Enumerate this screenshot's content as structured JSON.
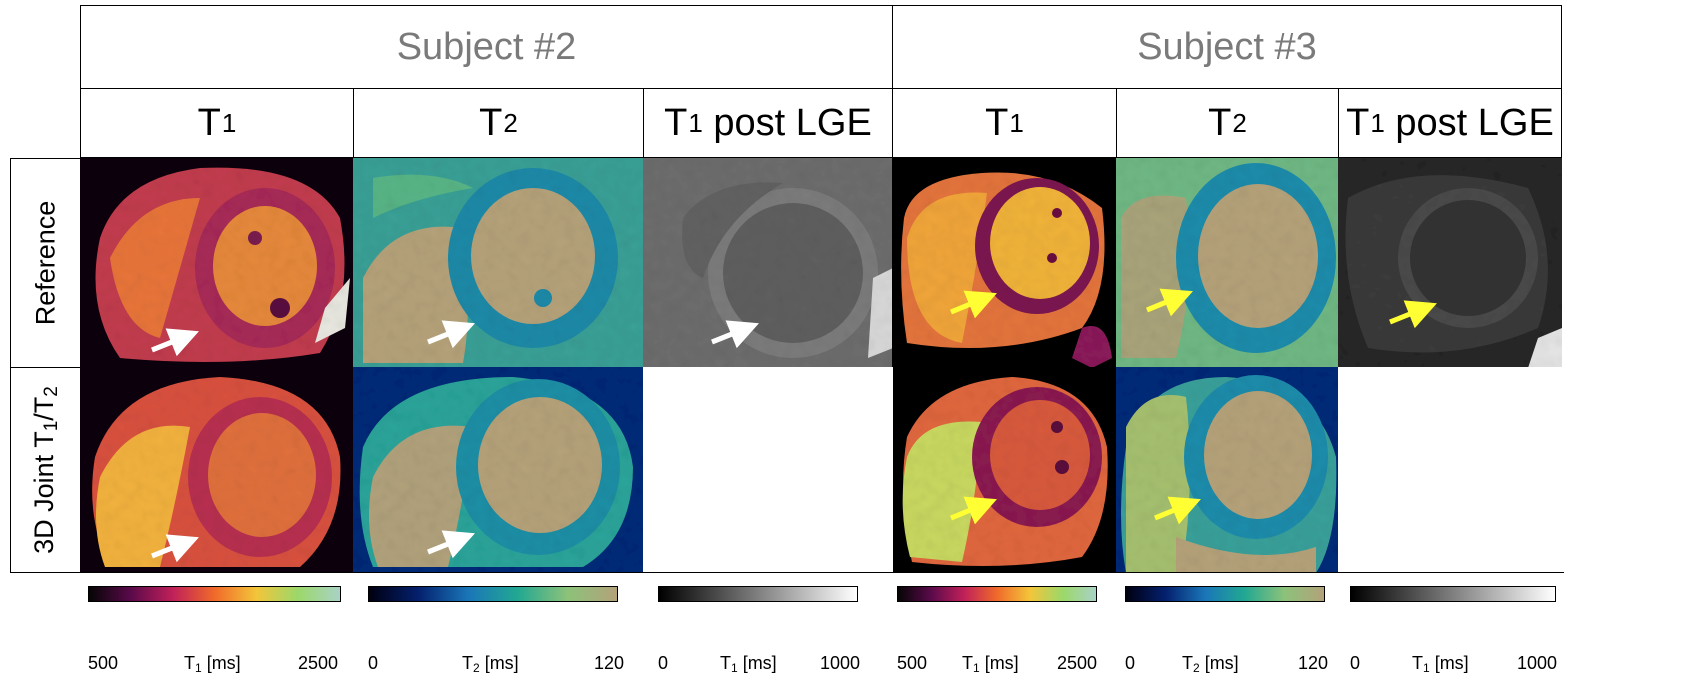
{
  "subjects": [
    "Subject #2",
    "Subject #3"
  ],
  "columns": {
    "t1": {
      "sym": "T",
      "sub": "1",
      "rest": ""
    },
    "t2": {
      "sym": "T",
      "sub": "2",
      "rest": ""
    },
    "t1lge": {
      "sym": "T",
      "sub": "1",
      "rest": " post LGE"
    }
  },
  "rows": {
    "reference": "Reference",
    "joint_prefix": "3D Joint T",
    "joint_sub1": "1",
    "joint_mid": "/T",
    "joint_sub2": "2"
  },
  "colorbars": [
    {
      "min": "500",
      "label_sym": "T",
      "label_sub": "1",
      "label_unit": " [ms]",
      "max": "2500",
      "map": "t1"
    },
    {
      "min": "0",
      "label_sym": "T",
      "label_sub": "2",
      "label_unit": " [ms]",
      "max": "120",
      "map": "t2"
    },
    {
      "min": "0",
      "label_sym": "T",
      "label_sub": "1",
      "label_unit": " [ms]",
      "max": "1000",
      "map": "gray"
    },
    {
      "min": "500",
      "label_sym": "T",
      "label_sub": "1",
      "label_unit": " [ms]",
      "max": "2500",
      "map": "t1"
    },
    {
      "min": "0",
      "label_sym": "T",
      "label_sub": "2",
      "label_unit": " [ms]",
      "max": "120",
      "map": "t2"
    },
    {
      "min": "0",
      "label_sym": "T",
      "label_sub": "1",
      "label_unit": " [ms]",
      "max": "1000",
      "map": "gray"
    }
  ],
  "colors": {
    "arrow_subject2": "#ffffff",
    "arrow_subject3": "#ffff33",
    "subject_header_text": "#7a7a7a"
  }
}
